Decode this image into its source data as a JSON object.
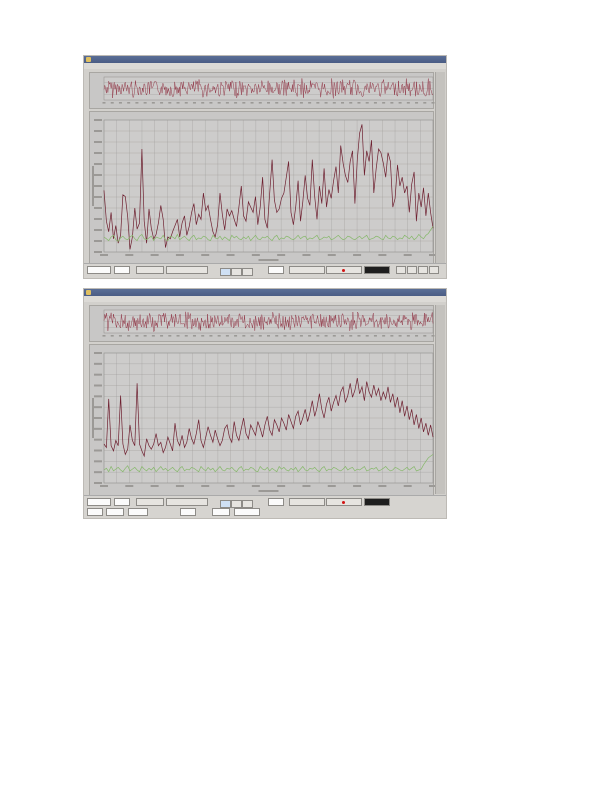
{
  "screens": [
    {
      "id": "screen-1",
      "chart_data": {
        "type": "line",
        "series": [
          {
            "values": [
              265,
              230,
              218,
              240,
              210,
              225,
              205,
              214,
              260,
              258,
              235,
              198,
              212,
              245,
              221,
              228,
              312,
              230,
              205,
              244,
              222,
              210,
              215,
              228,
              248,
              232,
              200,
              212,
              210,
              218,
              225,
              232,
              212,
              228,
              236,
              214,
              224,
              240,
              250,
              226,
              238,
              232,
              262,
              242,
              248,
              232,
              218,
              212,
              226,
              262,
              238,
              220,
              244,
              236,
              242,
              232,
              224,
              246,
              270,
              236,
              230,
              252,
              246,
              240,
              258,
              226,
              246,
              280,
              232,
              222,
              262,
              300,
              254,
              240,
              244,
              256,
              262,
              280,
              298,
              240,
              226,
              246,
              276,
              230,
              252,
              282,
              256,
              248,
              300,
              258,
              232,
              270,
              250,
              290,
              246,
              266,
              256,
              276,
              292,
              262,
              316,
              296,
              282,
              274,
              298,
              310,
              250,
              300,
              330,
              340,
              282,
              310,
              298,
              322,
              262,
              290,
              312,
              308,
              296,
              280,
              308,
              298,
              246,
              256,
              294,
              270,
              280,
              262,
              270,
              240,
              272,
              286,
              230,
              262,
              246,
              268,
              236,
              262,
              240,
              222
            ]
          },
          {
            "values": [
              212,
              210,
              208,
              212,
              214,
              209,
              207,
              211,
              213,
              210,
              209,
              212,
              214,
              210,
              208,
              213,
              215,
              210,
              209,
              211,
              213,
              208,
              212,
              211,
              210,
              214,
              209,
              208,
              213,
              212,
              210,
              215,
              209,
              211,
              213,
              210,
              208,
              212,
              214,
              209,
              211,
              210,
              213,
              212,
              209,
              208,
              214,
              211,
              210,
              213,
              209,
              212,
              210,
              208,
              214,
              211,
              213,
              210,
              209,
              212,
              210,
              213,
              208,
              211,
              214,
              210,
              209,
              212,
              211,
              213,
              210,
              208,
              212,
              214,
              209,
              211,
              210,
              213,
              212,
              210,
              209,
              211,
              214,
              210,
              212,
              213,
              209,
              211,
              210,
              212,
              214,
              209,
              210,
              212,
              211,
              213,
              209,
              210,
              212,
              214,
              211,
              209,
              210,
              213,
              212,
              210,
              209,
              211,
              213,
              210,
              212,
              214,
              209,
              210,
              211,
              213,
              212,
              210,
              209,
              214,
              211,
              210,
              213,
              212,
              209,
              211,
              210,
              214,
              212,
              210,
              213,
              209,
              211,
              215,
              212,
              210,
              214,
              216,
              220,
              224
            ]
          }
        ],
        "ylim": [
          195,
          345
        ],
        "grid": true
      }
    },
    {
      "id": "screen-2",
      "chart_data": {
        "type": "line",
        "series": [
          {
            "values": [
              240,
              236,
              292,
              238,
              232,
              244,
              238,
              296,
              240,
              228,
              234,
              262,
              244,
              238,
              310,
              240,
              232,
              226,
              246,
              238,
              234,
              240,
              252,
              238,
              242,
              230,
              236,
              248,
              240,
              232,
              264,
              244,
              238,
              250,
              236,
              242,
              258,
              246,
              240,
              252,
              268,
              244,
              236,
              248,
              260,
              250,
              242,
              256,
              246,
              238,
              244,
              258,
              262,
              248,
              242,
              266,
              250,
              244,
              258,
              270,
              252,
              246,
              262,
              256,
              250,
              266,
              258,
              248,
              262,
              272,
              256,
              250,
              268,
              262,
              254,
              270,
              264,
              256,
              274,
              266,
              258,
              272,
              278,
              262,
              270,
              280,
              266,
              276,
              290,
              272,
              282,
              298,
              280,
              270,
              286,
              294,
              278,
              288,
              296,
              284,
              300,
              306,
              288,
              296,
              310,
              294,
              302,
              316,
              298,
              306,
              290,
              312,
              300,
              294,
              308,
              296,
              304,
              290,
              300,
              292,
              306,
              288,
              298,
              282,
              294,
              276,
              290,
              272,
              284,
              268,
              280,
              262,
              274,
              258,
              270,
              254,
              264,
              250,
              262,
              248
            ]
          },
          {
            "values": [
              210,
              212,
              208,
              214,
              209,
              211,
              213,
              210,
              208,
              212,
              215,
              209,
              211,
              213,
              210,
              208,
              214,
              211,
              209,
              212,
              210,
              213,
              208,
              211,
              214,
              210,
              212,
              209,
              211,
              213,
              210,
              208,
              212,
              214,
              209,
              211,
              210,
              213,
              212,
              210,
              208,
              214,
              211,
              209,
              213,
              210,
              212,
              208,
              211,
              214,
              210,
              209,
              212,
              211,
              213,
              210,
              208,
              212,
              214,
              209,
              211,
              210,
              213,
              212,
              209,
              208,
              214,
              211,
              210,
              213,
              209,
              212,
              210,
              208,
              214,
              211,
              213,
              210,
              209,
              212,
              210,
              213,
              208,
              211,
              214,
              210,
              209,
              212,
              211,
              213,
              210,
              208,
              212,
              214,
              209,
              211,
              210,
              213,
              212,
              210,
              209,
              211,
              214,
              210,
              212,
              213,
              209,
              211,
              210,
              212,
              214,
              209,
              210,
              212,
              211,
              213,
              209,
              210,
              212,
              214,
              211,
              209,
              210,
              213,
              212,
              210,
              209,
              211,
              213,
              210,
              212,
              214,
              209,
              210,
              211,
              216,
              220,
              224,
              226,
              228
            ]
          }
        ],
        "ylim": [
          195,
          345
        ],
        "grid": true
      }
    }
  ],
  "colors": {
    "wave": "#8c2a3c",
    "spectrum": "#6e2030",
    "secondary": "#86b86a",
    "pane": "#c8c7c6",
    "grid": "#9a9896",
    "record": "#d21414"
  }
}
